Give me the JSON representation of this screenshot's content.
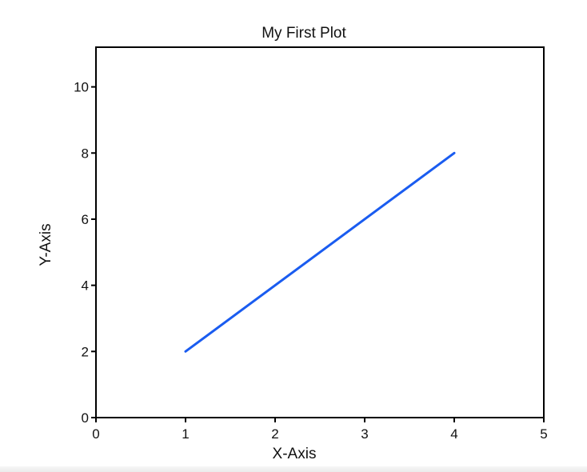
{
  "chart_data": {
    "type": "line",
    "title": "My First Plot",
    "xlabel": "X-Axis",
    "ylabel": "Y-Axis",
    "xlim": [
      0,
      5
    ],
    "ylim": [
      0,
      11.2
    ],
    "xticks": [
      0,
      1,
      2,
      3,
      4,
      5
    ],
    "yticks": [
      0,
      2,
      4,
      6,
      8,
      10
    ],
    "grid": false,
    "legend": "none",
    "series": [
      {
        "x": [
          1,
          4
        ],
        "y": [
          2,
          8
        ],
        "color": "#1a5cf0"
      }
    ]
  }
}
